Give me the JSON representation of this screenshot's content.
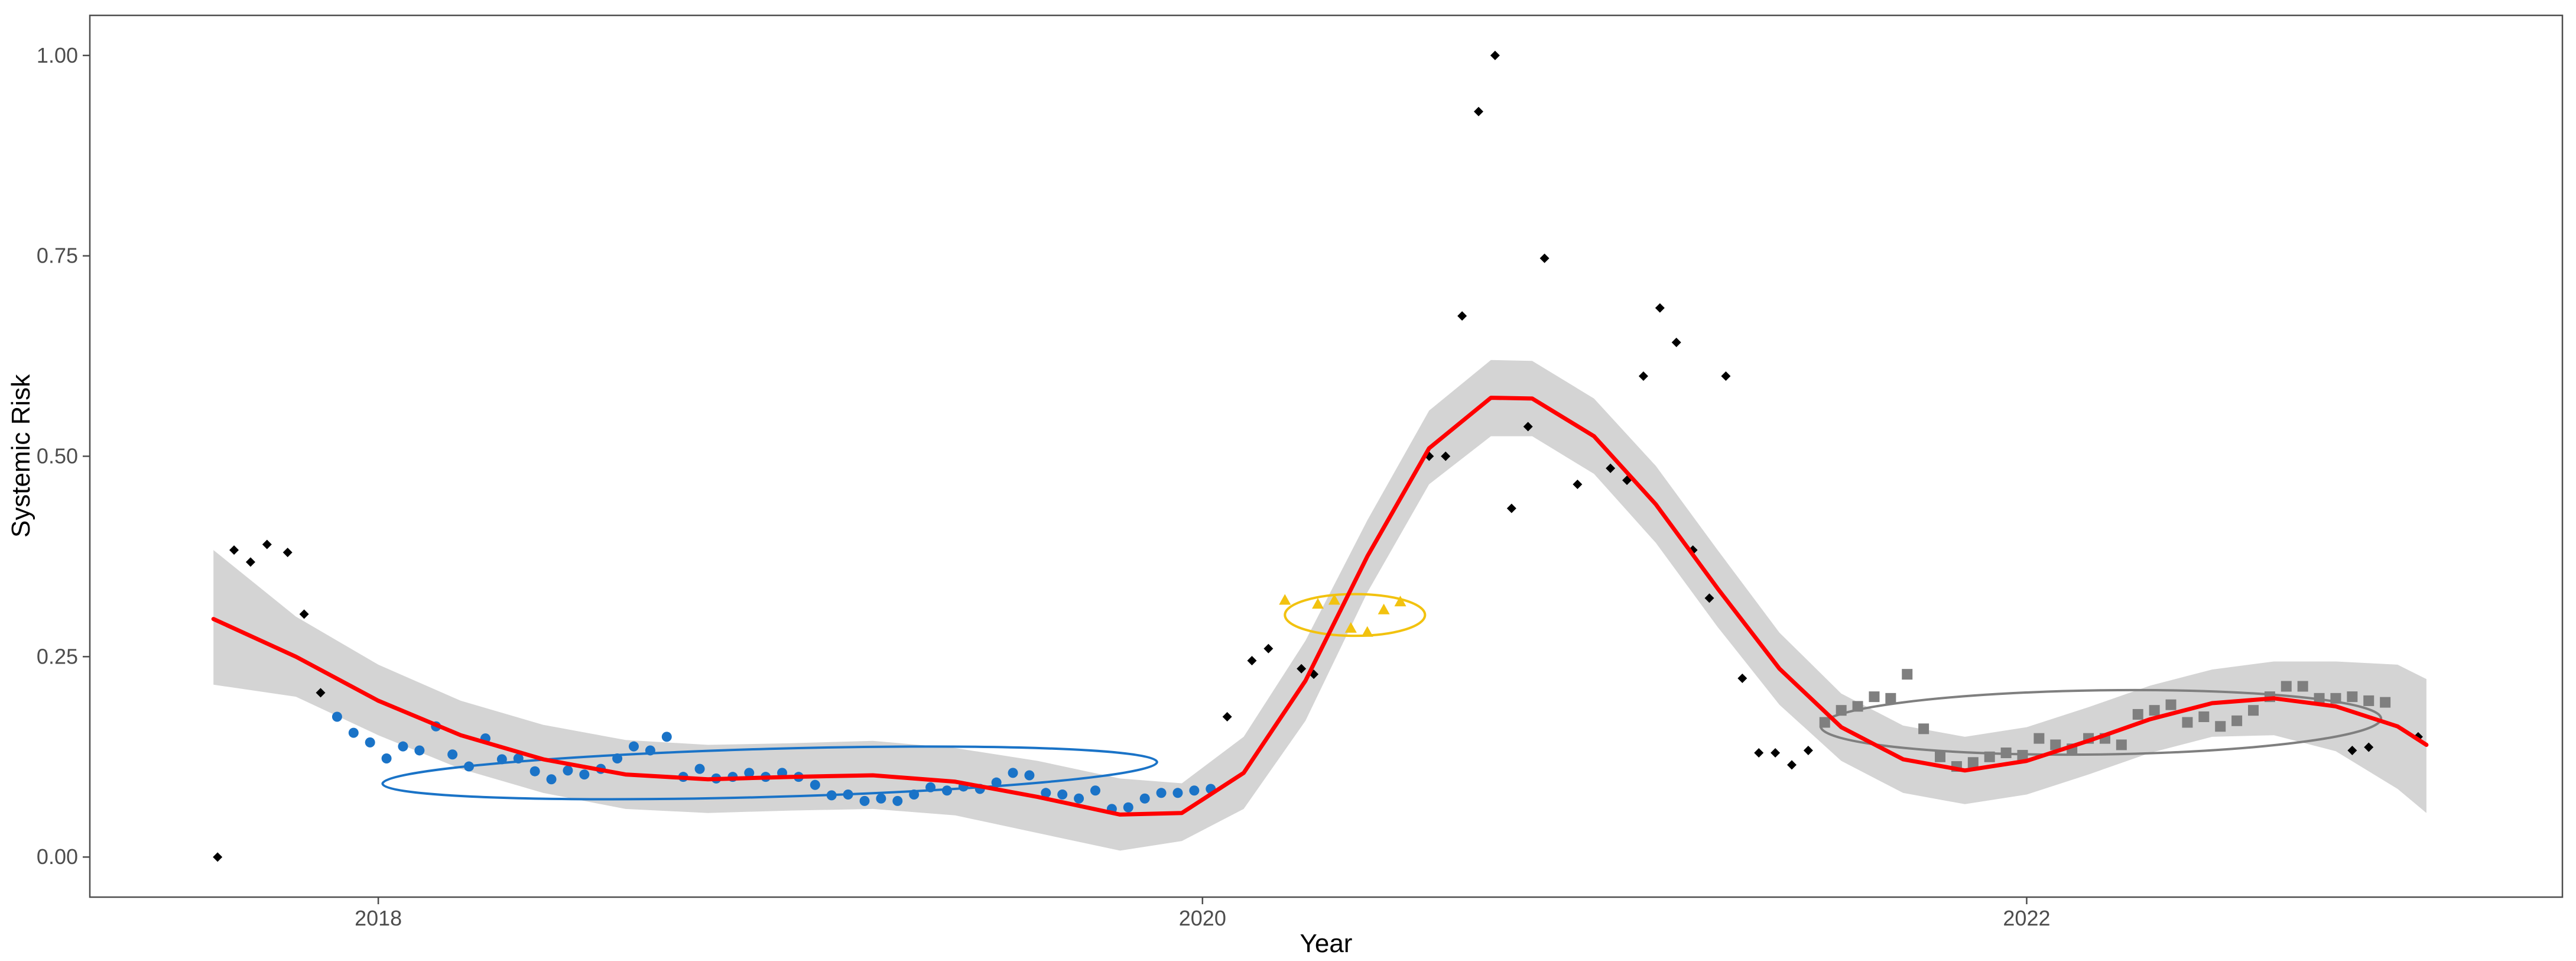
{
  "chart_data": {
    "type": "scatter",
    "title": "",
    "xlabel": "Year",
    "ylabel": "Systemic Risk",
    "xlim": [
      2017.3,
      2023.3
    ],
    "ylim": [
      -0.05,
      1.05
    ],
    "x_ticks": [
      2018,
      2020,
      2022
    ],
    "x_tick_labels": [
      "2018",
      "2020",
      "2022"
    ],
    "y_ticks": [
      0,
      0.25,
      0.5,
      0.75,
      1.0
    ],
    "y_tick_labels": [
      "0.00",
      "0.25",
      "0.50",
      "0.75",
      "1.00"
    ],
    "grid": false,
    "colors": {
      "black": "#000000",
      "blue": "#1a73c7",
      "gold": "#f2c20f",
      "gray": "#7f7f7f",
      "smooth": "#ff0000",
      "ribbon": "#d4d4d4",
      "panel_border": "#4d4d4d"
    },
    "series": [
      {
        "name": "unclustered",
        "marker": "diamond",
        "color": "#000000",
        "points": [
          [
            2017.61,
            0.0
          ],
          [
            2017.65,
            0.383
          ],
          [
            2017.69,
            0.368
          ],
          [
            2017.73,
            0.39
          ],
          [
            2017.78,
            0.38
          ],
          [
            2017.82,
            0.303
          ],
          [
            2017.86,
            0.205
          ],
          [
            2020.06,
            0.175
          ],
          [
            2020.12,
            0.245
          ],
          [
            2020.16,
            0.26
          ],
          [
            2020.24,
            0.235
          ],
          [
            2020.27,
            0.228
          ],
          [
            2020.55,
            0.5
          ],
          [
            2020.59,
            0.5
          ],
          [
            2020.63,
            0.675
          ],
          [
            2020.67,
            0.93
          ],
          [
            2020.71,
            1.0
          ],
          [
            2020.75,
            0.435
          ],
          [
            2020.79,
            0.537
          ],
          [
            2020.83,
            0.747
          ],
          [
            2020.91,
            0.465
          ],
          [
            2020.99,
            0.485
          ],
          [
            2021.03,
            0.47
          ],
          [
            2021.07,
            0.6
          ],
          [
            2021.11,
            0.685
          ],
          [
            2021.15,
            0.642
          ],
          [
            2021.19,
            0.383
          ],
          [
            2021.23,
            0.323
          ],
          [
            2021.27,
            0.6
          ],
          [
            2021.31,
            0.223
          ],
          [
            2021.35,
            0.13
          ],
          [
            2021.39,
            0.13
          ],
          [
            2021.43,
            0.115
          ],
          [
            2021.47,
            0.133
          ],
          [
            2022.79,
            0.133
          ],
          [
            2022.83,
            0.137
          ],
          [
            2022.95,
            0.15
          ]
        ]
      },
      {
        "name": "cluster-blue",
        "marker": "circle",
        "color": "#1a73c7",
        "points": [
          [
            2017.9,
            0.175
          ],
          [
            2017.94,
            0.155
          ],
          [
            2017.98,
            0.143
          ],
          [
            2018.02,
            0.123
          ],
          [
            2018.06,
            0.138
          ],
          [
            2018.1,
            0.133
          ],
          [
            2018.14,
            0.163
          ],
          [
            2018.18,
            0.128
          ],
          [
            2018.22,
            0.113
          ],
          [
            2018.26,
            0.148
          ],
          [
            2018.3,
            0.122
          ],
          [
            2018.34,
            0.123
          ],
          [
            2018.38,
            0.107
          ],
          [
            2018.42,
            0.097
          ],
          [
            2018.46,
            0.108
          ],
          [
            2018.5,
            0.103
          ],
          [
            2018.54,
            0.11
          ],
          [
            2018.58,
            0.123
          ],
          [
            2018.62,
            0.138
          ],
          [
            2018.66,
            0.133
          ],
          [
            2018.7,
            0.15
          ],
          [
            2018.74,
            0.1
          ],
          [
            2018.78,
            0.11
          ],
          [
            2018.82,
            0.098
          ],
          [
            2018.86,
            0.1
          ],
          [
            2018.9,
            0.105
          ],
          [
            2018.94,
            0.1
          ],
          [
            2018.98,
            0.105
          ],
          [
            2019.02,
            0.1
          ],
          [
            2019.06,
            0.09
          ],
          [
            2019.1,
            0.077
          ],
          [
            2019.14,
            0.078
          ],
          [
            2019.18,
            0.07
          ],
          [
            2019.22,
            0.073
          ],
          [
            2019.26,
            0.07
          ],
          [
            2019.3,
            0.078
          ],
          [
            2019.34,
            0.087
          ],
          [
            2019.38,
            0.083
          ],
          [
            2019.42,
            0.088
          ],
          [
            2019.46,
            0.085
          ],
          [
            2019.5,
            0.093
          ],
          [
            2019.54,
            0.105
          ],
          [
            2019.58,
            0.102
          ],
          [
            2019.62,
            0.08
          ],
          [
            2019.66,
            0.078
          ],
          [
            2019.7,
            0.073
          ],
          [
            2019.74,
            0.083
          ],
          [
            2019.78,
            0.06
          ],
          [
            2019.82,
            0.062
          ],
          [
            2019.86,
            0.073
          ],
          [
            2019.9,
            0.08
          ],
          [
            2019.94,
            0.08
          ],
          [
            2019.98,
            0.083
          ],
          [
            2020.02,
            0.085
          ]
        ]
      },
      {
        "name": "cluster-gold",
        "marker": "triangle",
        "color": "#f2c20f",
        "points": [
          [
            2020.2,
            0.32
          ],
          [
            2020.28,
            0.315
          ],
          [
            2020.32,
            0.32
          ],
          [
            2020.36,
            0.285
          ],
          [
            2020.4,
            0.28
          ],
          [
            2020.44,
            0.308
          ],
          [
            2020.48,
            0.318
          ]
        ]
      },
      {
        "name": "cluster-gray",
        "marker": "square",
        "color": "#7f7f7f",
        "points": [
          [
            2021.51,
            0.168
          ],
          [
            2021.55,
            0.183
          ],
          [
            2021.59,
            0.188
          ],
          [
            2021.63,
            0.2
          ],
          [
            2021.67,
            0.198
          ],
          [
            2021.71,
            0.228
          ],
          [
            2021.75,
            0.16
          ],
          [
            2021.79,
            0.125
          ],
          [
            2021.83,
            0.113
          ],
          [
            2021.87,
            0.118
          ],
          [
            2021.91,
            0.125
          ],
          [
            2021.95,
            0.13
          ],
          [
            2021.99,
            0.127
          ],
          [
            2022.03,
            0.148
          ],
          [
            2022.07,
            0.14
          ],
          [
            2022.11,
            0.135
          ],
          [
            2022.15,
            0.148
          ],
          [
            2022.19,
            0.148
          ],
          [
            2022.23,
            0.14
          ],
          [
            2022.27,
            0.178
          ],
          [
            2022.31,
            0.183
          ],
          [
            2022.35,
            0.19
          ],
          [
            2022.39,
            0.168
          ],
          [
            2022.43,
            0.175
          ],
          [
            2022.47,
            0.163
          ],
          [
            2022.51,
            0.17
          ],
          [
            2022.55,
            0.183
          ],
          [
            2022.59,
            0.2
          ],
          [
            2022.63,
            0.213
          ],
          [
            2022.67,
            0.213
          ],
          [
            2022.71,
            0.198
          ],
          [
            2022.75,
            0.198
          ],
          [
            2022.79,
            0.2
          ],
          [
            2022.83,
            0.195
          ],
          [
            2022.87,
            0.193
          ]
        ]
      }
    ],
    "smooth_curve": {
      "color": "#ff0000",
      "points": [
        [
          2017.6,
          0.297
        ],
        [
          2017.8,
          0.25
        ],
        [
          2018.0,
          0.195
        ],
        [
          2018.2,
          0.152
        ],
        [
          2018.4,
          0.122
        ],
        [
          2018.6,
          0.103
        ],
        [
          2018.8,
          0.097
        ],
        [
          2019.0,
          0.1
        ],
        [
          2019.2,
          0.102
        ],
        [
          2019.4,
          0.094
        ],
        [
          2019.6,
          0.075
        ],
        [
          2019.8,
          0.053
        ],
        [
          2019.95,
          0.055
        ],
        [
          2020.1,
          0.105
        ],
        [
          2020.25,
          0.22
        ],
        [
          2020.4,
          0.375
        ],
        [
          2020.55,
          0.51
        ],
        [
          2020.7,
          0.573
        ],
        [
          2020.8,
          0.572
        ],
        [
          2020.95,
          0.525
        ],
        [
          2021.1,
          0.44
        ],
        [
          2021.25,
          0.335
        ],
        [
          2021.4,
          0.235
        ],
        [
          2021.55,
          0.162
        ],
        [
          2021.7,
          0.122
        ],
        [
          2021.85,
          0.108
        ],
        [
          2022.0,
          0.12
        ],
        [
          2022.15,
          0.145
        ],
        [
          2022.3,
          0.172
        ],
        [
          2022.45,
          0.192
        ],
        [
          2022.6,
          0.198
        ],
        [
          2022.75,
          0.188
        ],
        [
          2022.9,
          0.163
        ],
        [
          2022.97,
          0.14
        ]
      ]
    },
    "confidence_band": {
      "color": "#d4d4d4",
      "points": [
        [
          2017.6,
          0.215,
          0.383
        ],
        [
          2017.8,
          0.2,
          0.3
        ],
        [
          2018.0,
          0.152,
          0.24
        ],
        [
          2018.2,
          0.11,
          0.195
        ],
        [
          2018.4,
          0.08,
          0.165
        ],
        [
          2018.6,
          0.06,
          0.146
        ],
        [
          2018.8,
          0.055,
          0.14
        ],
        [
          2019.0,
          0.058,
          0.142
        ],
        [
          2019.2,
          0.06,
          0.145
        ],
        [
          2019.4,
          0.052,
          0.136
        ],
        [
          2019.6,
          0.03,
          0.12
        ],
        [
          2019.8,
          0.008,
          0.098
        ],
        [
          2019.95,
          0.02,
          0.092
        ],
        [
          2020.1,
          0.06,
          0.15
        ],
        [
          2020.25,
          0.17,
          0.27
        ],
        [
          2020.4,
          0.33,
          0.42
        ],
        [
          2020.55,
          0.465,
          0.557
        ],
        [
          2020.7,
          0.525,
          0.62
        ],
        [
          2020.8,
          0.525,
          0.619
        ],
        [
          2020.95,
          0.478,
          0.572
        ],
        [
          2021.1,
          0.392,
          0.488
        ],
        [
          2021.25,
          0.287,
          0.383
        ],
        [
          2021.4,
          0.19,
          0.28
        ],
        [
          2021.55,
          0.12,
          0.204
        ],
        [
          2021.7,
          0.08,
          0.164
        ],
        [
          2021.85,
          0.066,
          0.15
        ],
        [
          2022.0,
          0.078,
          0.162
        ],
        [
          2022.15,
          0.103,
          0.187
        ],
        [
          2022.3,
          0.13,
          0.214
        ],
        [
          2022.45,
          0.15,
          0.234
        ],
        [
          2022.6,
          0.152,
          0.244
        ],
        [
          2022.75,
          0.132,
          0.244
        ],
        [
          2022.9,
          0.085,
          0.24
        ],
        [
          2022.97,
          0.055,
          0.222
        ]
      ]
    },
    "ellipses": [
      {
        "name": "ellipse-blue",
        "color": "#1a73c7",
        "cx": 2018.95,
        "cy": 0.105,
        "rx": 0.94,
        "ry": 0.03,
        "tilt_deg": -1.6
      },
      {
        "name": "ellipse-gold",
        "color": "#f2c20f",
        "cx": 2020.37,
        "cy": 0.302,
        "rx": 0.17,
        "ry": 0.026,
        "tilt_deg": 0
      },
      {
        "name": "ellipse-gray",
        "color": "#7f7f7f",
        "cx": 2022.18,
        "cy": 0.168,
        "rx": 0.68,
        "ry": 0.04,
        "tilt_deg": -0.8
      }
    ]
  }
}
